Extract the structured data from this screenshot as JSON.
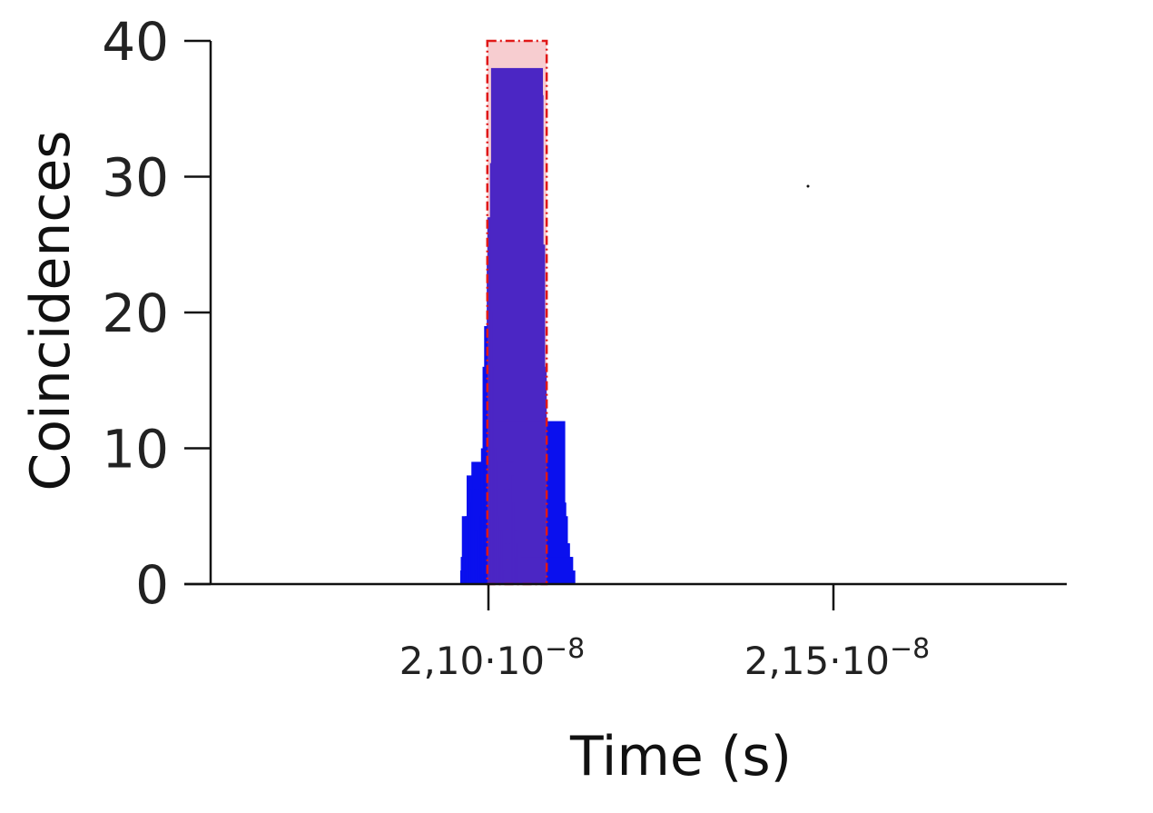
{
  "chart_data": {
    "type": "bar",
    "title": "",
    "xlabel": "Time (s)",
    "ylabel": "Coincidences",
    "ylim": [
      0,
      40
    ],
    "xlim": [
      2.0875e-08,
      2.2e-08
    ],
    "y_ticks": [
      {
        "value": 0,
        "label": "0"
      },
      {
        "value": 10,
        "label": "10"
      },
      {
        "value": 20,
        "label": "20"
      },
      {
        "value": 30,
        "label": "30"
      },
      {
        "value": 40,
        "label": "40"
      }
    ],
    "x_ticks": [
      {
        "value": 2.1e-08,
        "mantissa": "2,10·10",
        "exponent": "−8"
      },
      {
        "value": 2.15e-08,
        "mantissa": "2,15·10",
        "exponent": "−8"
      }
    ],
    "bin_width": 7.6e-11,
    "bins": [
      {
        "x": 2.09967e-08,
        "y": 1
      },
      {
        "x": 2.09975e-08,
        "y": 2
      },
      {
        "x": 2.09983e-08,
        "y": 0
      },
      {
        "x": 2.09991e-08,
        "y": 5
      },
      {
        "x": 2.09998e-08,
        "y": 2
      },
      {
        "x": 2.10006e-08,
        "y": 2
      },
      {
        "x": 2.10014e-08,
        "y": 1
      },
      {
        "x": 2.10021e-08,
        "y": 3
      },
      {
        "x": 2.10029e-08,
        "y": 1
      },
      {
        "x": 2.10037e-08,
        "y": 5
      },
      {
        "x": 2.10044e-08,
        "y": 2
      },
      {
        "x": 2.10052e-08,
        "y": 1
      },
      {
        "x": 2.1006e-08,
        "y": 8
      },
      {
        "x": 2.10068e-08,
        "y": 6
      },
      {
        "x": 2.10075e-08,
        "y": 3
      },
      {
        "x": 2.10083e-08,
        "y": 2
      },
      {
        "x": 2.10091e-08,
        "y": 7
      },
      {
        "x": 2.10098e-08,
        "y": 6
      },
      {
        "x": 2.10106e-08,
        "y": 5
      },
      {
        "x": 2.10114e-08,
        "y": 6
      },
      {
        "x": 2.10121e-08,
        "y": 8
      },
      {
        "x": 2.10129e-08,
        "y": 9
      },
      {
        "x": 2.10137e-08,
        "y": 7
      },
      {
        "x": 2.10145e-08,
        "y": 9
      },
      {
        "x": 2.10152e-08,
        "y": 8
      },
      {
        "x": 2.1016e-08,
        "y": 7
      },
      {
        "x": 2.10168e-08,
        "y": 5
      },
      {
        "x": 2.10175e-08,
        "y": 7
      },
      {
        "x": 2.10183e-08,
        "y": 4
      },
      {
        "x": 2.10191e-08,
        "y": 1
      },
      {
        "x": 2.10198e-08,
        "y": 8
      },
      {
        "x": 2.10206e-08,
        "y": 4
      },
      {
        "x": 2.10214e-08,
        "y": 4
      },
      {
        "x": 2.10221e-08,
        "y": 5
      },
      {
        "x": 2.10229e-08,
        "y": 2
      },
      {
        "x": 2.10237e-08,
        "y": 7
      },
      {
        "x": 2.10245e-08,
        "y": 5
      },
      {
        "x": 2.10252e-08,
        "y": 5
      },
      {
        "x": 2.1026e-08,
        "y": 9
      },
      {
        "x": 2.10268e-08,
        "y": 10
      },
      {
        "x": 2.10275e-08,
        "y": 7
      },
      {
        "x": 2.10283e-08,
        "y": 10
      },
      {
        "x": 2.10291e-08,
        "y": 16
      },
      {
        "x": 2.10298e-08,
        "y": 12
      },
      {
        "x": 2.10306e-08,
        "y": 15
      },
      {
        "x": 2.10314e-08,
        "y": 19
      },
      {
        "x": 2.10322e-08,
        "y": 16
      },
      {
        "x": 2.10329e-08,
        "y": 18
      },
      {
        "x": 2.10337e-08,
        "y": 18
      },
      {
        "x": 2.10345e-08,
        "y": 19
      },
      {
        "x": 2.10352e-08,
        "y": 24
      },
      {
        "x": 2.1036e-08,
        "y": 27
      },
      {
        "x": 2.10368e-08,
        "y": 27
      },
      {
        "x": 2.10375e-08,
        "y": 26
      },
      {
        "x": 2.10383e-08,
        "y": 27
      },
      {
        "x": 2.10391e-08,
        "y": 21
      },
      {
        "x": 2.10398e-08,
        "y": 31
      },
      {
        "x": 2.10406e-08,
        "y": 28
      },
      {
        "x": 2.10414e-08,
        "y": 38
      },
      {
        "x": 2.10422e-08,
        "y": 36
      },
      {
        "x": 2.10429e-08,
        "y": 20
      },
      {
        "x": 2.10437e-08,
        "y": 21
      },
      {
        "x": 2.10445e-08,
        "y": 25
      },
      {
        "x": 2.10452e-08,
        "y": 16
      },
      {
        "x": 2.1046e-08,
        "y": 10
      },
      {
        "x": 2.10468e-08,
        "y": 16
      },
      {
        "x": 2.10475e-08,
        "y": 12
      },
      {
        "x": 2.10483e-08,
        "y": 12
      },
      {
        "x": 2.10491e-08,
        "y": 10
      },
      {
        "x": 2.10498e-08,
        "y": 9
      },
      {
        "x": 2.10506e-08,
        "y": 10
      },
      {
        "x": 2.10514e-08,
        "y": 9
      },
      {
        "x": 2.10521e-08,
        "y": 7
      },
      {
        "x": 2.10529e-08,
        "y": 5
      },
      {
        "x": 2.10537e-08,
        "y": 4
      },
      {
        "x": 2.10545e-08,
        "y": 2
      },
      {
        "x": 2.10552e-08,
        "y": 5
      },
      {
        "x": 2.1056e-08,
        "y": 4
      },
      {
        "x": 2.10568e-08,
        "y": 6
      },
      {
        "x": 2.10575e-08,
        "y": 4
      },
      {
        "x": 2.10583e-08,
        "y": 5
      },
      {
        "x": 2.10591e-08,
        "y": 1
      },
      {
        "x": 2.10598e-08,
        "y": 1
      },
      {
        "x": 2.10606e-08,
        "y": 9
      },
      {
        "x": 2.10614e-08,
        "y": 3
      },
      {
        "x": 2.10622e-08,
        "y": 3
      },
      {
        "x": 2.10629e-08,
        "y": 6
      },
      {
        "x": 2.10637e-08,
        "y": 3
      },
      {
        "x": 2.10645e-08,
        "y": 5
      },
      {
        "x": 2.10652e-08,
        "y": 7
      },
      {
        "x": 2.1066e-08,
        "y": 7
      },
      {
        "x": 2.10668e-08,
        "y": 5
      },
      {
        "x": 2.10675e-08,
        "y": 3
      },
      {
        "x": 2.10683e-08,
        "y": 9
      },
      {
        "x": 2.10691e-08,
        "y": 8
      },
      {
        "x": 2.10698e-08,
        "y": 9
      },
      {
        "x": 2.10706e-08,
        "y": 9
      },
      {
        "x": 2.10714e-08,
        "y": 8
      },
      {
        "x": 2.10722e-08,
        "y": 6
      },
      {
        "x": 2.10729e-08,
        "y": 8
      },
      {
        "x": 2.10737e-08,
        "y": 12
      },
      {
        "x": 2.10745e-08,
        "y": 6
      },
      {
        "x": 2.10752e-08,
        "y": 6
      },
      {
        "x": 2.1076e-08,
        "y": 4
      },
      {
        "x": 2.10768e-08,
        "y": 2
      },
      {
        "x": 2.10775e-08,
        "y": 5
      },
      {
        "x": 2.10783e-08,
        "y": 3
      },
      {
        "x": 2.10791e-08,
        "y": 2
      },
      {
        "x": 2.10798e-08,
        "y": 3
      },
      {
        "x": 2.10806e-08,
        "y": 3
      },
      {
        "x": 2.10814e-08,
        "y": 0
      },
      {
        "x": 2.10822e-08,
        "y": 0
      },
      {
        "x": 2.10829e-08,
        "y": 0
      },
      {
        "x": 2.10837e-08,
        "y": 2
      },
      {
        "x": 2.10845e-08,
        "y": 0
      },
      {
        "x": 2.10852e-08,
        "y": 2
      },
      {
        "x": 2.1086e-08,
        "y": 0
      },
      {
        "x": 2.10868e-08,
        "y": 0
      },
      {
        "x": 2.10875e-08,
        "y": 0
      },
      {
        "x": 2.10883e-08,
        "y": 1
      }
    ],
    "highlight_region": {
      "x_start": 2.1036e-08,
      "x_end": 2.10468e-08,
      "y_top": 40
    }
  }
}
